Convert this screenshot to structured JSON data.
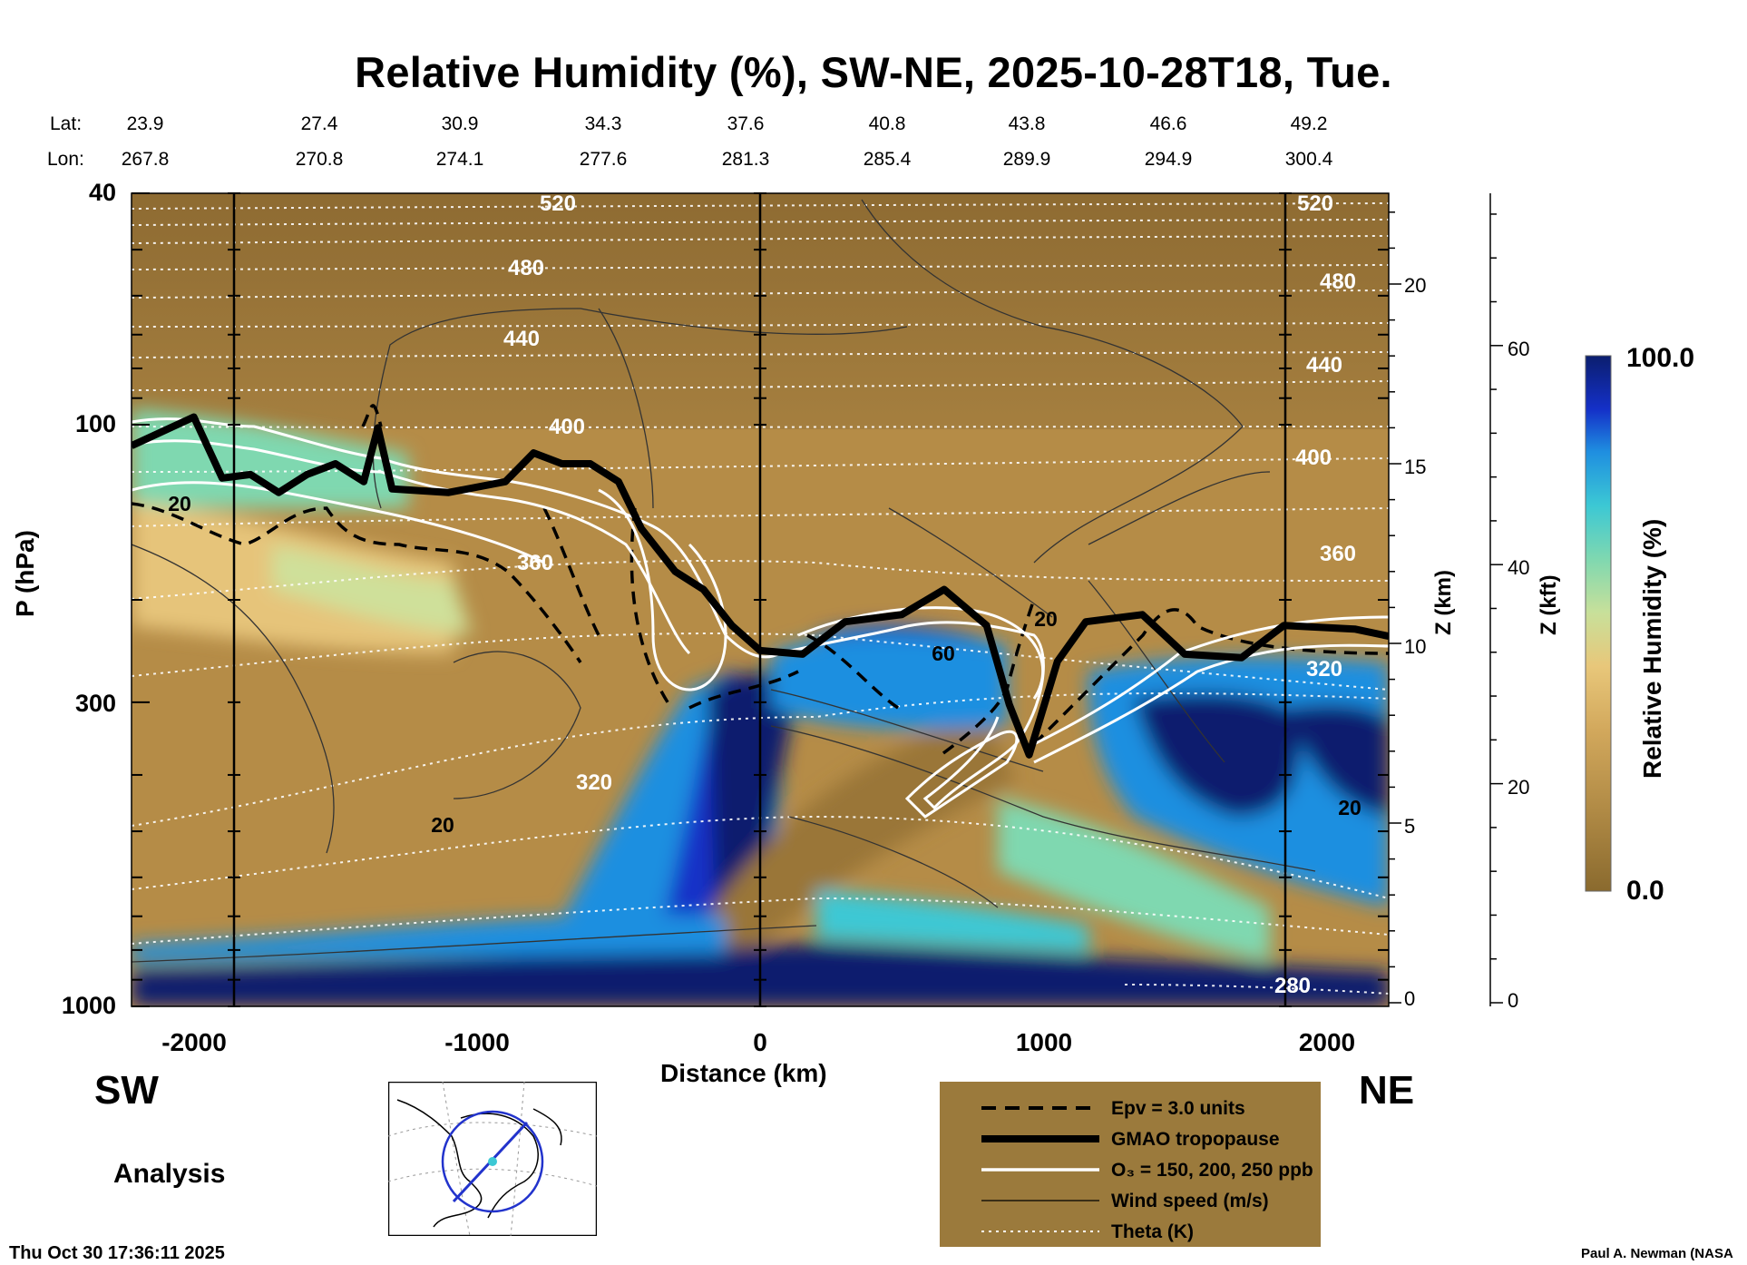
{
  "title": "Relative Humidity (%), SW-NE, 2025-10-28T18, Tue.",
  "header": {
    "lat_label": "Lat:",
    "lon_label": "Lon:",
    "lat": [
      "23.9",
      "27.4",
      "30.9",
      "34.3",
      "37.6",
      "40.8",
      "43.8",
      "46.6",
      "49.2"
    ],
    "lon": [
      "267.8",
      "270.8",
      "274.1",
      "277.6",
      "281.3",
      "285.4",
      "289.9",
      "294.9",
      "300.4"
    ]
  },
  "chart_data": {
    "type": "heatmap",
    "title": "Relative Humidity (%), SW-NE, 2025-10-28T18, Tue.",
    "xlabel": "Distance (km)",
    "ylabel": "P (hPa)",
    "y2label": "Z (km)",
    "y3label": "Z (kft)",
    "xlim": [
      -2220,
      2220
    ],
    "ylim": [
      1000,
      40
    ],
    "y_scale": "log",
    "x_ticks": [
      "-2000",
      "-1000",
      "0",
      "1000",
      "2000"
    ],
    "p_ticks": [
      "40",
      "100",
      "300",
      "1000"
    ],
    "z_km_ticks": [
      "20",
      "15",
      "10",
      "5",
      "0"
    ],
    "z_kft_ticks": [
      "60",
      "40",
      "20",
      "0"
    ],
    "colorbar": {
      "label": "Relative Humidity (%)",
      "min_label": "0.0",
      "max_label": "100.0",
      "min": 0,
      "max": 100
    },
    "theta_labels": [
      "520",
      "480",
      "440",
      "400",
      "360",
      "320",
      "280"
    ],
    "contour_labels": [
      "20",
      "60",
      "20",
      "20",
      "20"
    ],
    "left_label": "SW",
    "right_label": "NE",
    "legend": [
      "Epv = 3.0 units",
      "GMAO tropopause",
      "O₃ = 150, 200, 250 ppb",
      "Wind speed (m/s)",
      "Theta (K)"
    ],
    "tropopause_km": [
      [
        -2220,
        15.5
      ],
      [
        -2000,
        16.3
      ],
      [
        -1900,
        14.6
      ],
      [
        -1800,
        14.7
      ],
      [
        -1700,
        14.2
      ],
      [
        -1600,
        14.7
      ],
      [
        -1500,
        15.0
      ],
      [
        -1400,
        14.5
      ],
      [
        -1350,
        16.0
      ],
      [
        -1300,
        14.3
      ],
      [
        -1100,
        14.2
      ],
      [
        -900,
        14.5
      ],
      [
        -800,
        15.3
      ],
      [
        -700,
        15.0
      ],
      [
        -600,
        15.0
      ],
      [
        -500,
        14.5
      ],
      [
        -420,
        13.2
      ],
      [
        -300,
        12.0
      ],
      [
        -200,
        11.5
      ],
      [
        -100,
        10.5
      ],
      [
        0,
        9.8
      ],
      [
        150,
        9.7
      ],
      [
        300,
        10.6
      ],
      [
        500,
        10.8
      ],
      [
        650,
        11.5
      ],
      [
        800,
        10.5
      ],
      [
        880,
        8.3
      ],
      [
        950,
        6.9
      ],
      [
        1050,
        9.5
      ],
      [
        1150,
        10.6
      ],
      [
        1350,
        10.8
      ],
      [
        1500,
        9.7
      ],
      [
        1700,
        9.6
      ],
      [
        1850,
        10.5
      ],
      [
        2100,
        10.4
      ],
      [
        2220,
        10.2
      ]
    ]
  },
  "footer": {
    "analysis": "Analysis",
    "timestamp": "Thu Oct 30 17:36:11 2025",
    "credit": "Paul A. Newman (NASA"
  }
}
